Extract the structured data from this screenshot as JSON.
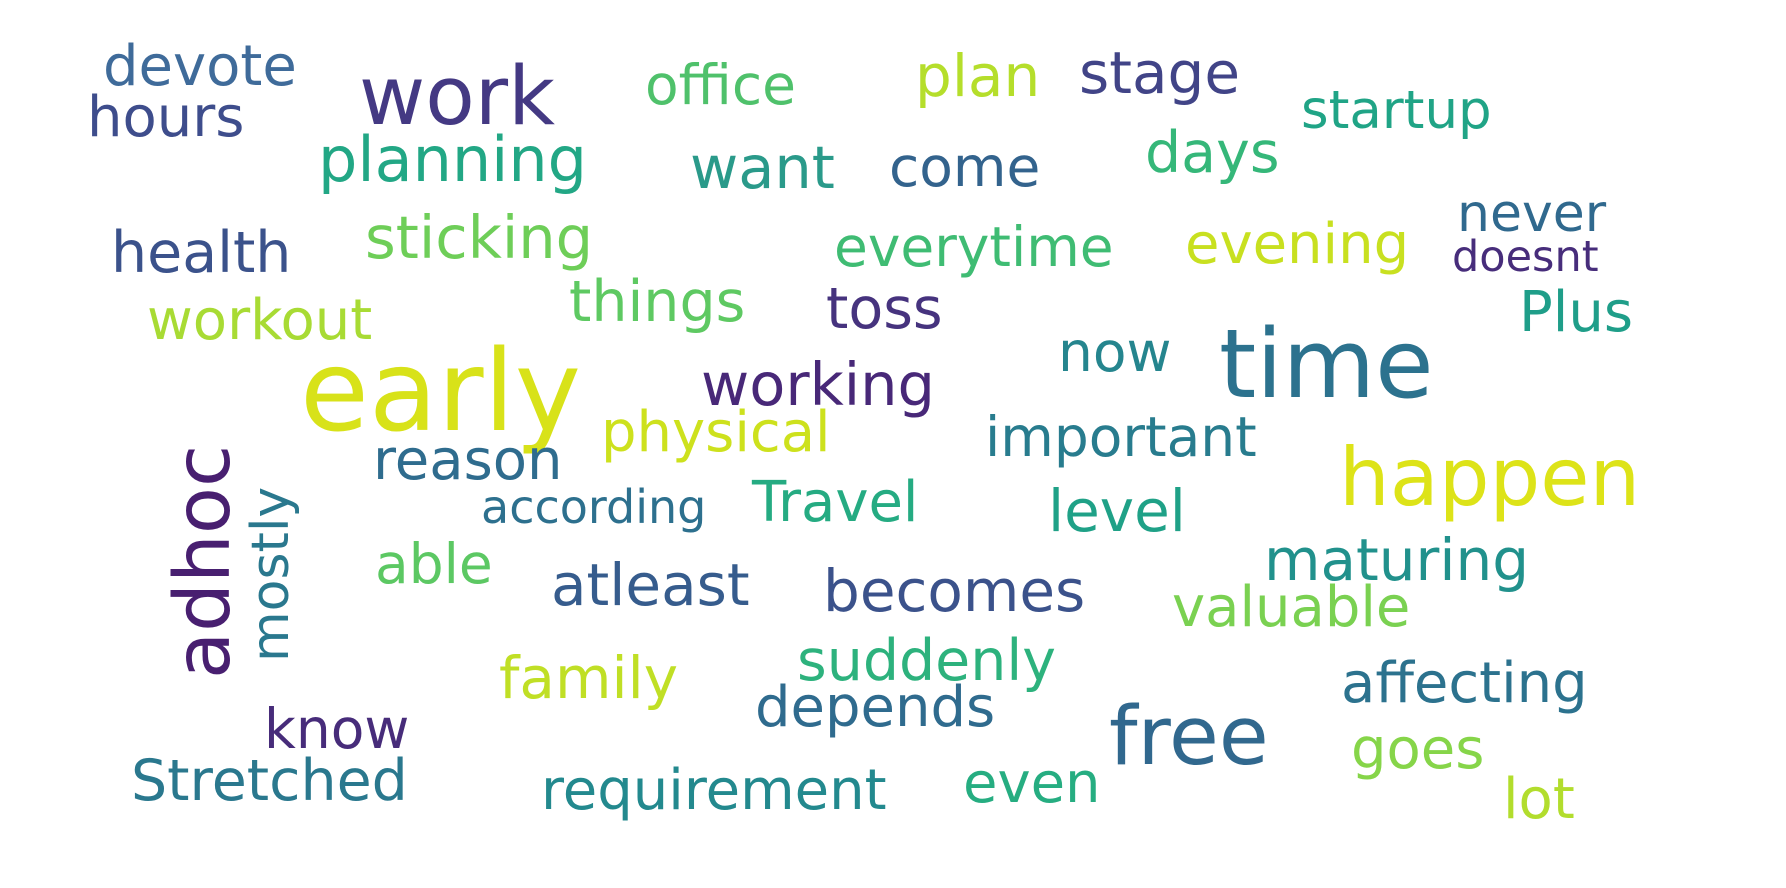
{
  "colors": {
    "background": "#ffffff",
    "palette_note": "viridis"
  },
  "words": [
    {
      "text": "devote",
      "color": "#3f6b9a"
    },
    {
      "text": "hours",
      "color": "#3e4d8c"
    },
    {
      "text": "work",
      "color": "#443983"
    },
    {
      "text": "office",
      "color": "#4fc16b"
    },
    {
      "text": "plan",
      "color": "#b5de2b"
    },
    {
      "text": "stage",
      "color": "#414487"
    },
    {
      "text": "startup",
      "color": "#20a486"
    },
    {
      "text": "planning",
      "color": "#22a785"
    },
    {
      "text": "want",
      "color": "#2a9a8a"
    },
    {
      "text": "come",
      "color": "#33638d"
    },
    {
      "text": "days",
      "color": "#35b779"
    },
    {
      "text": "never",
      "color": "#30698e"
    },
    {
      "text": "health",
      "color": "#3b528b"
    },
    {
      "text": "sticking",
      "color": "#6ece58"
    },
    {
      "text": "everytime",
      "color": "#3fbc73"
    },
    {
      "text": "evening",
      "color": "#c8e020"
    },
    {
      "text": "doesnt",
      "color": "#472d7b"
    },
    {
      "text": "things",
      "color": "#5ec962"
    },
    {
      "text": "toss",
      "color": "#46337e"
    },
    {
      "text": "Plus",
      "color": "#1f9e89"
    },
    {
      "text": "workout",
      "color": "#a8db34"
    },
    {
      "text": "early",
      "color": "#d8e219"
    },
    {
      "text": "now",
      "color": "#25858e"
    },
    {
      "text": "time",
      "color": "#2c728e"
    },
    {
      "text": "working",
      "color": "#482878"
    },
    {
      "text": "important",
      "color": "#287c8e"
    },
    {
      "text": "physical",
      "color": "#cde11d"
    },
    {
      "text": "happen",
      "color": "#dde318"
    },
    {
      "text": "adhoc",
      "color": "#481f70"
    },
    {
      "text": "mostly",
      "color": "#2a788e"
    },
    {
      "text": "reason",
      "color": "#2f6c8e"
    },
    {
      "text": "according",
      "color": "#2d708e"
    },
    {
      "text": "Travel",
      "color": "#25ab82"
    },
    {
      "text": "level",
      "color": "#1fa187"
    },
    {
      "text": "able",
      "color": "#5cc863"
    },
    {
      "text": "atleast",
      "color": "#365c8d"
    },
    {
      "text": "becomes",
      "color": "#3b528b"
    },
    {
      "text": "maturing",
      "color": "#21918c"
    },
    {
      "text": "valuable",
      "color": "#7ad151"
    },
    {
      "text": "family",
      "color": "#c0df25"
    },
    {
      "text": "suddenly",
      "color": "#2db27d"
    },
    {
      "text": "affecting",
      "color": "#2c728e"
    },
    {
      "text": "depends",
      "color": "#2f6b8e"
    },
    {
      "text": "free",
      "color": "#31688e"
    },
    {
      "text": "know",
      "color": "#472c7a"
    },
    {
      "text": "goes",
      "color": "#86d549"
    },
    {
      "text": "Stretched",
      "color": "#2a788e"
    },
    {
      "text": "requirement",
      "color": "#23898e"
    },
    {
      "text": "even",
      "color": "#26ad81"
    },
    {
      "text": "lot",
      "color": "#b2dd2d"
    }
  ]
}
